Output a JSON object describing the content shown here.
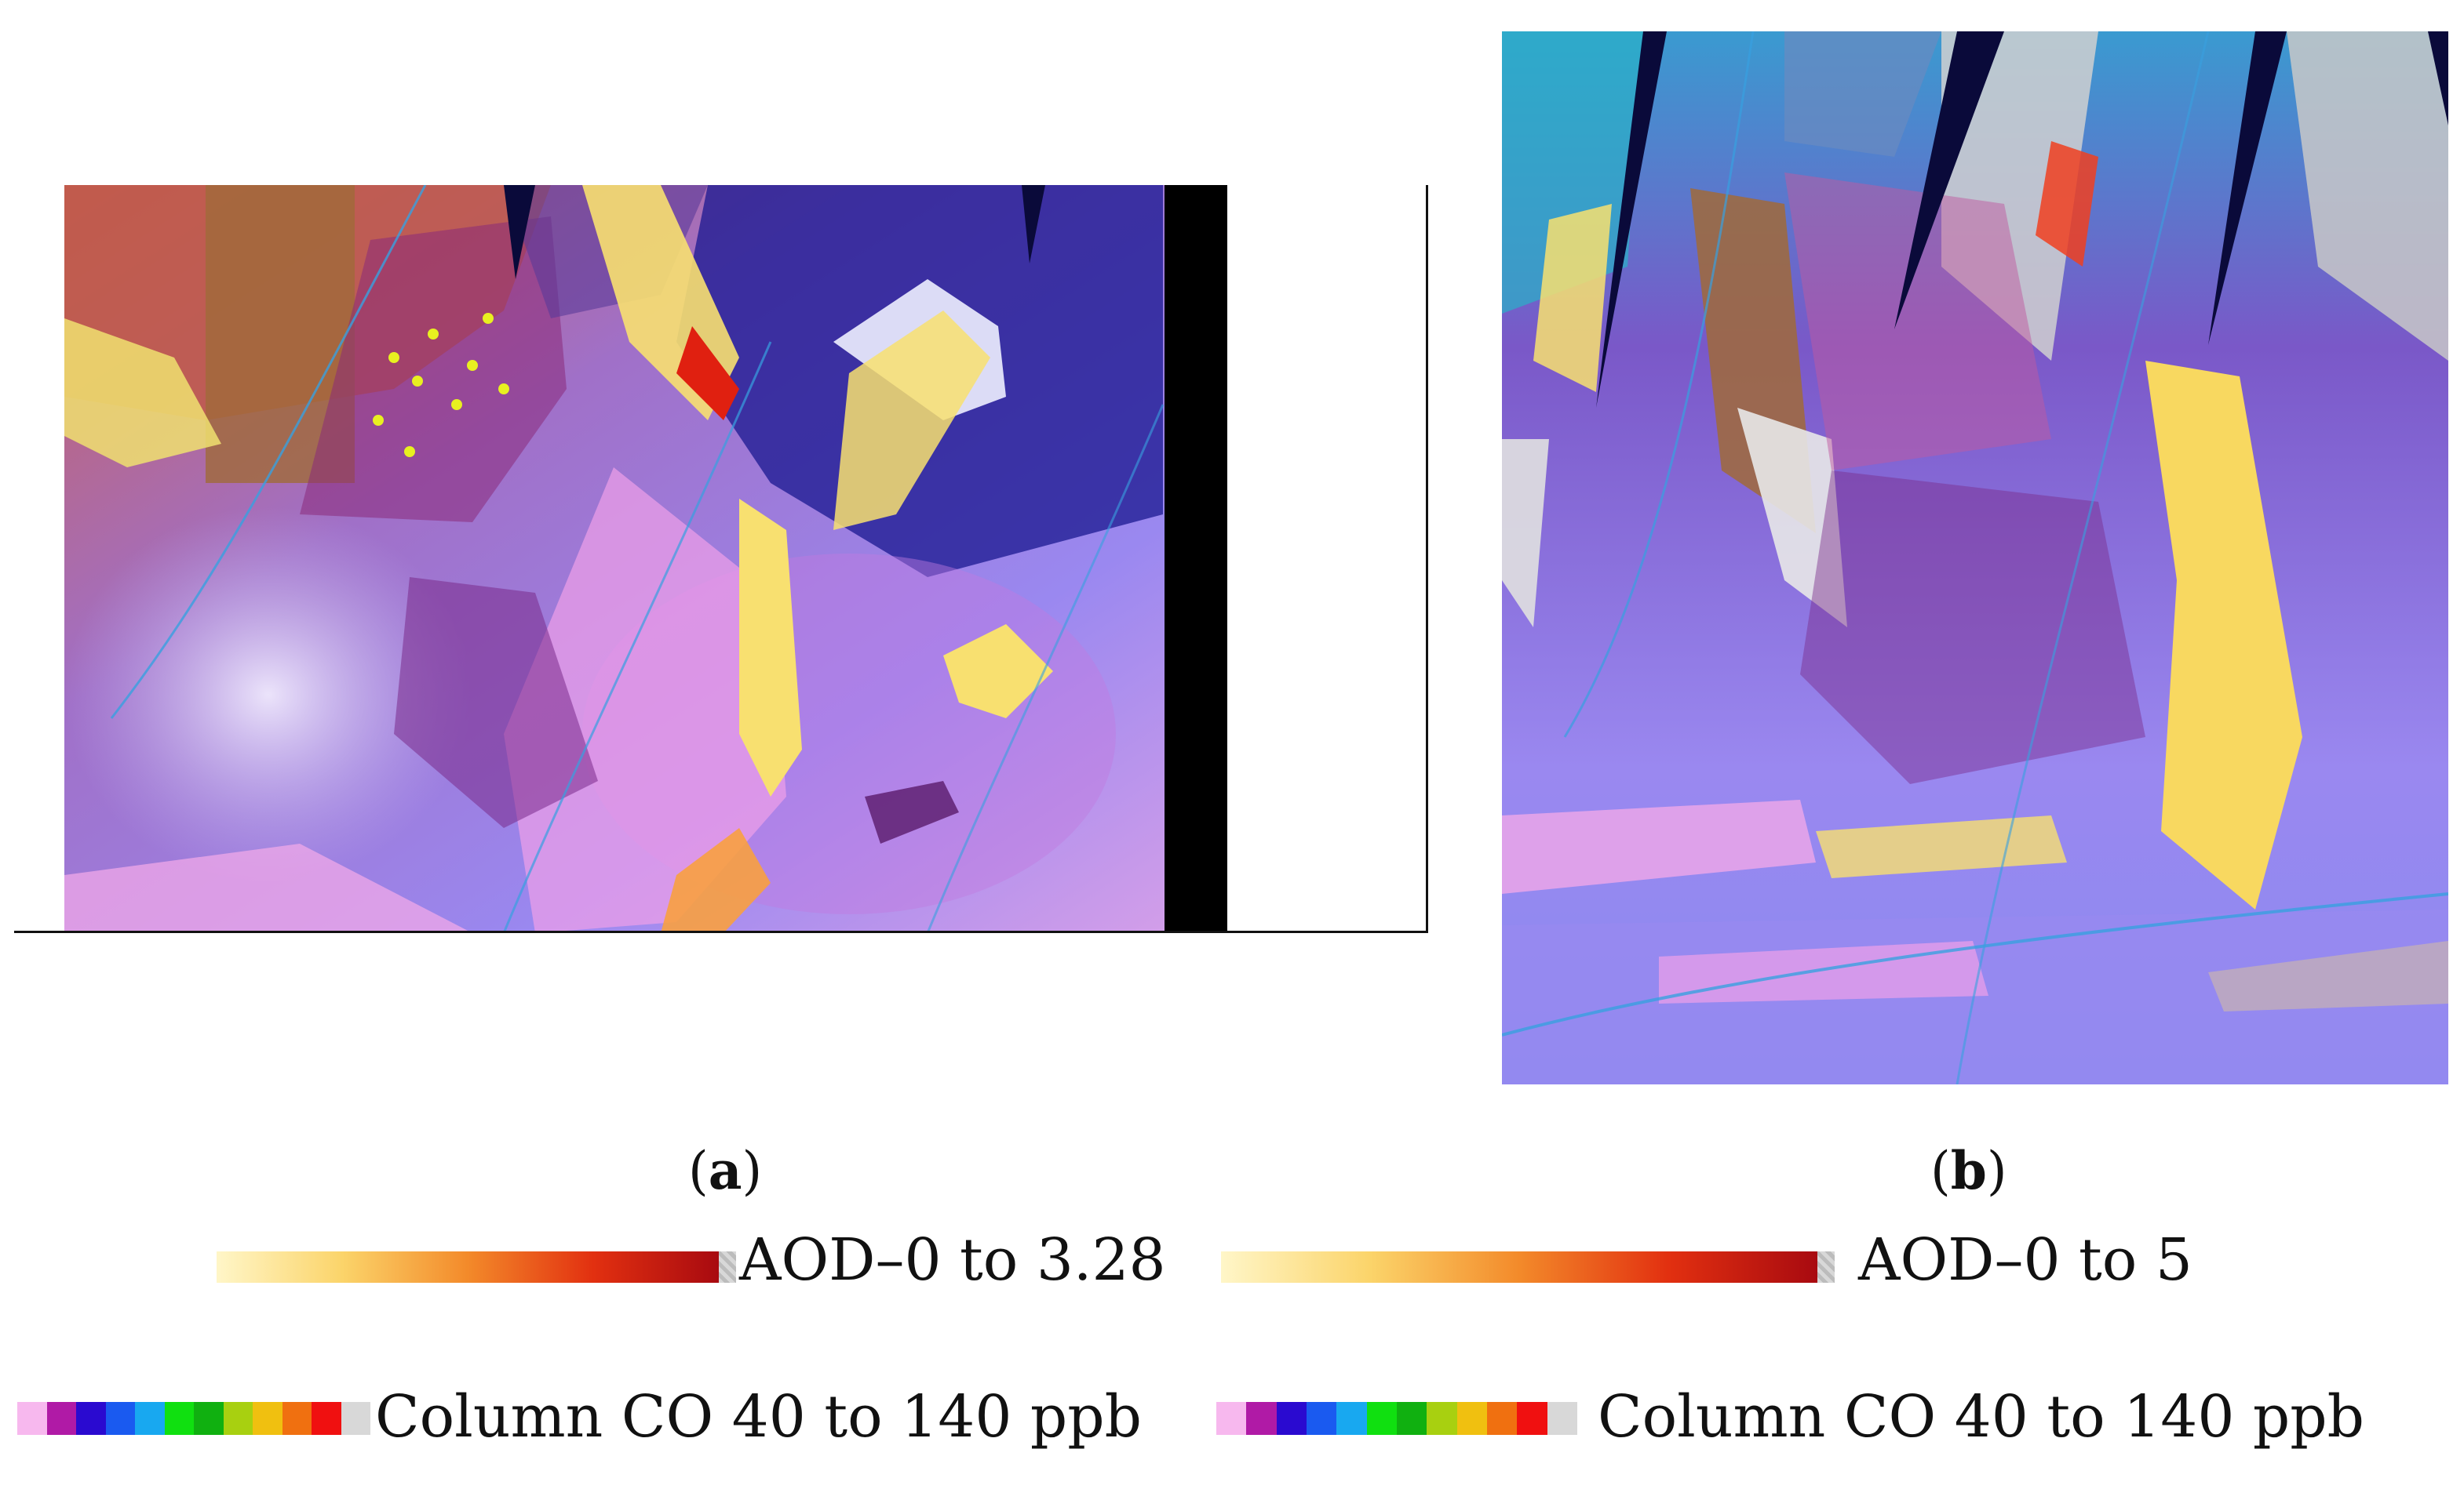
{
  "captions": {
    "a": "a",
    "b": "b"
  },
  "legend": {
    "aod_a": "AOD–0 to 3.28",
    "aod_b": "AOD–0 to 5",
    "co_a": "Column CO 40 to 140 ppb",
    "co_b": "Column CO 40 to 140 ppb"
  },
  "colorbars": {
    "aod": [
      "#fff6c8",
      "#fbd46a",
      "#f38a2a",
      "#e23010",
      "#a80a10"
    ],
    "co": [
      "#f7b8ee",
      "#b01aa6",
      "#2a0ad0",
      "#1a5af0",
      "#18a8f0",
      "#10e010",
      "#10b010",
      "#a8d010",
      "#f0c010",
      "#f07010",
      "#f01010",
      "#d8d8d8"
    ]
  },
  "colors": {
    "background": "#ffffff",
    "frame": "#111111",
    "imagery_lavender": "#9a88f0",
    "imagery_pink": "#f0a0e8",
    "imagery_yellow": "#f8e070",
    "imagery_navy": "#1a1890",
    "imagery_brown": "#8a5a30"
  }
}
